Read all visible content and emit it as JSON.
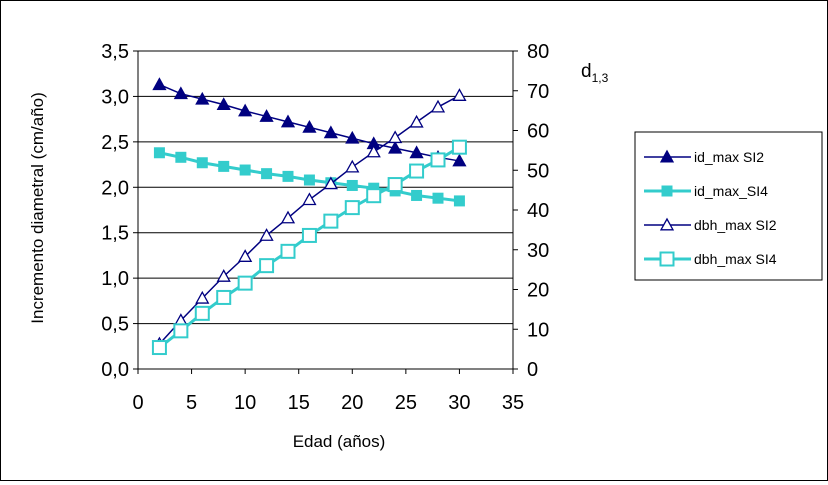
{
  "chart_data": {
    "type": "line",
    "title": "",
    "xlabel": "Edad (años)",
    "ylabel": "Incremento diametral (cm/año)",
    "y2label_main": "d",
    "y2label_sub": "1,3",
    "xlim": [
      0,
      35
    ],
    "ylim": [
      0,
      3.5
    ],
    "y2lim": [
      0,
      80
    ],
    "grid": "horizontal",
    "legend_position": "right",
    "x": [
      2,
      4,
      6,
      8,
      10,
      12,
      14,
      16,
      18,
      20,
      22,
      24,
      26,
      28,
      30
    ],
    "x_ticks": [
      "0",
      "5",
      "10",
      "15",
      "20",
      "25",
      "30",
      "35"
    ],
    "y_ticks": [
      "0,0",
      "0,5",
      "1,0",
      "1,5",
      "2,0",
      "2,5",
      "3,0",
      "3,5"
    ],
    "y2_ticks": [
      "0",
      "10",
      "20",
      "30",
      "40",
      "50",
      "60",
      "70",
      "80"
    ],
    "series": [
      {
        "name": "id_max SI2",
        "axis": "left",
        "color": "#000080",
        "marker": "triangle-filled",
        "values": [
          3.13,
          3.03,
          2.97,
          2.91,
          2.84,
          2.78,
          2.72,
          2.66,
          2.6,
          2.54,
          2.48,
          2.43,
          2.38,
          2.33,
          2.29
        ]
      },
      {
        "name": "id_max_SI4",
        "axis": "left",
        "color": "#33CCCC",
        "marker": "square-filled",
        "values": [
          2.38,
          2.33,
          2.27,
          2.23,
          2.19,
          2.15,
          2.12,
          2.08,
          2.05,
          2.02,
          1.99,
          1.96,
          1.91,
          1.88,
          1.85
        ]
      },
      {
        "name": "dbh_max SI2",
        "axis": "right",
        "color": "#000080",
        "marker": "triangle-open",
        "values": [
          6.3,
          12.2,
          17.8,
          23.3,
          28.3,
          33.6,
          38.0,
          42.6,
          46.6,
          50.8,
          54.6,
          58.2,
          62.1,
          65.9,
          68.8
        ]
      },
      {
        "name": "dbh_max SI4",
        "axis": "right",
        "color": "#33CCCC",
        "marker": "square-open",
        "values": [
          5.4,
          9.6,
          14.0,
          18.0,
          21.6,
          26.0,
          29.6,
          33.6,
          37.2,
          40.6,
          43.6,
          46.4,
          49.8,
          52.6,
          55.8
        ]
      }
    ]
  }
}
